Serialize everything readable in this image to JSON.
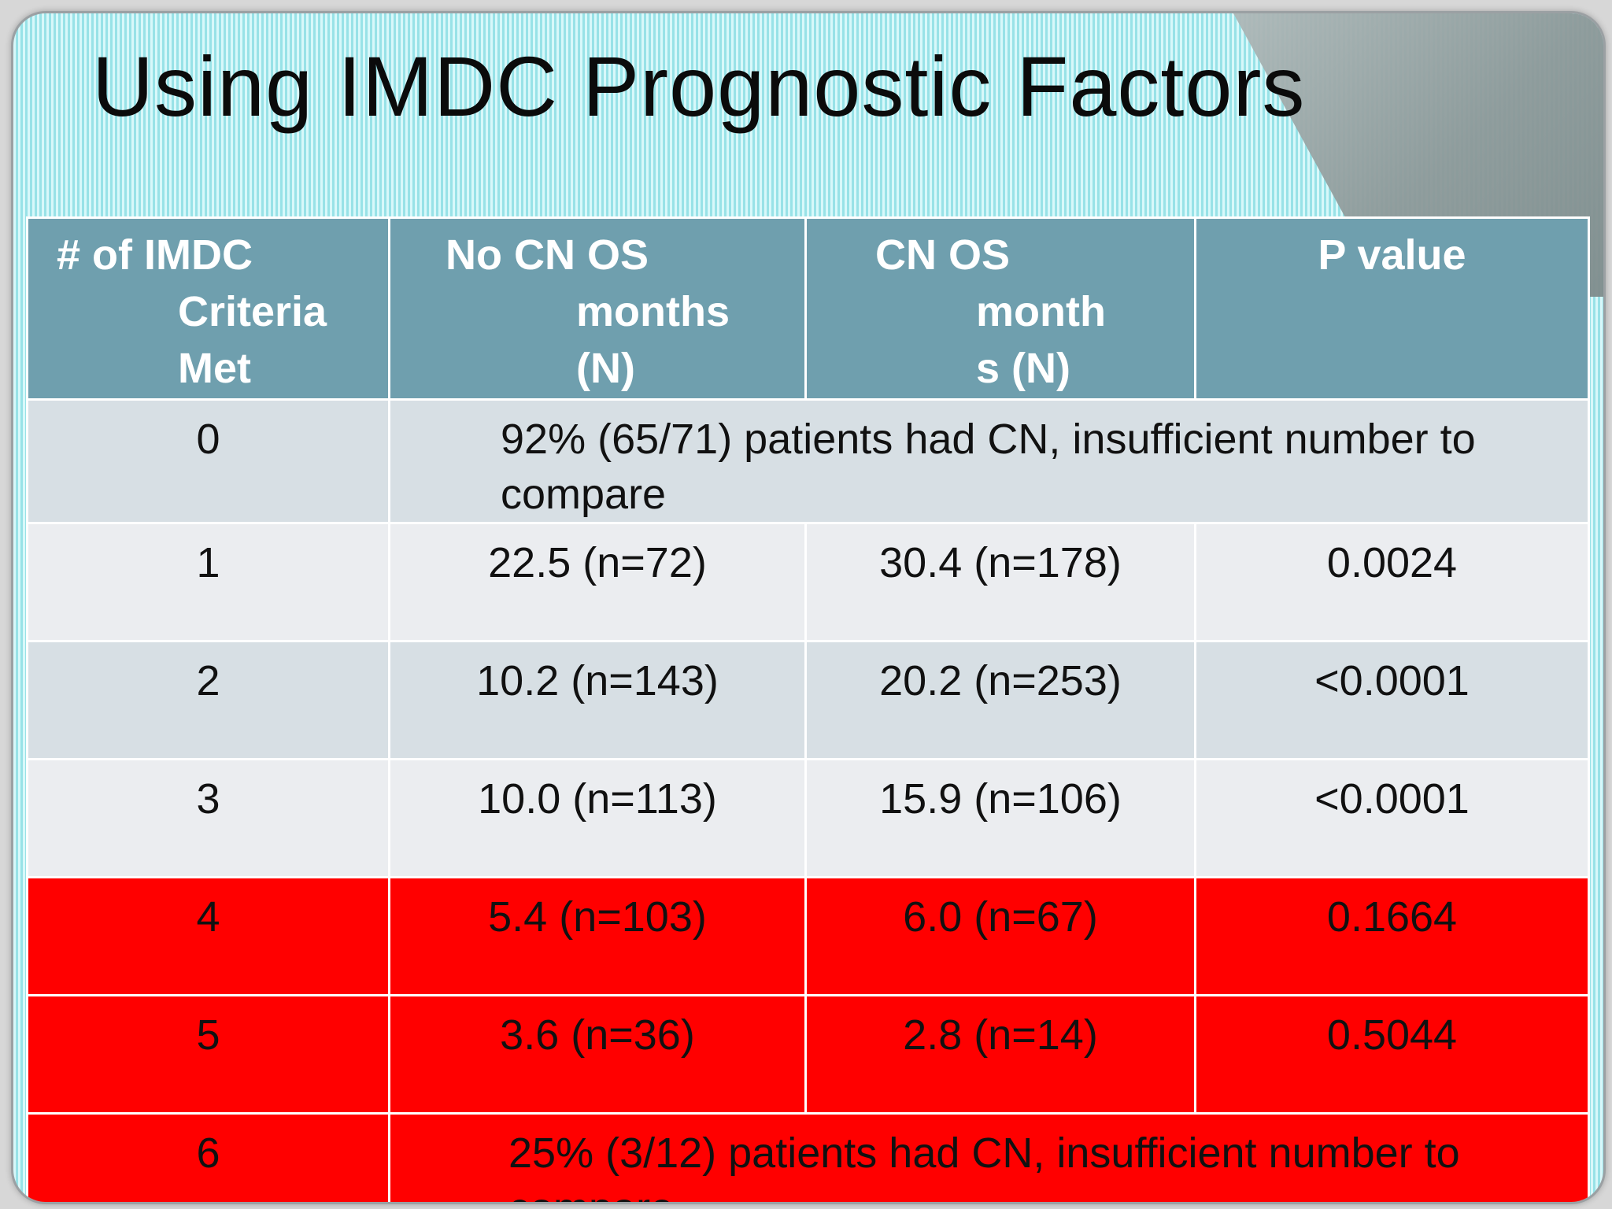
{
  "slide": {
    "title": "Using IMDC Prognostic Factors"
  },
  "table": {
    "headers": [
      {
        "lines": [
          "# of IMDC",
          "Criteria",
          "Met"
        ]
      },
      {
        "lines": [
          "No CN OS",
          "months",
          "(N)"
        ]
      },
      {
        "lines": [
          "CN OS",
          "month",
          "s  (N)"
        ]
      },
      {
        "lines": [
          "P value"
        ]
      }
    ],
    "rows": [
      {
        "criteria": "0",
        "span_lines": [
          "92% (65/71) patients had CN, insufficient number to",
          "compare"
        ]
      },
      {
        "criteria": "1",
        "no_cn": "22.5 (n=72)",
        "cn": "30.4 (n=178)",
        "p": "0.0024"
      },
      {
        "criteria": "2",
        "no_cn": "10.2 (n=143)",
        "cn": "20.2 (n=253)",
        "p": "<0.0001"
      },
      {
        "criteria": "3",
        "no_cn": "10.0 (n=113)",
        "cn": "15.9 (n=106)",
        "p": "<0.0001"
      },
      {
        "criteria": "4",
        "no_cn": "5.4 (n=103)",
        "cn": "6.0 (n=67)",
        "p": "0.1664"
      },
      {
        "criteria": "5",
        "no_cn": "3.6 (n=36)",
        "cn": "2.8 (n=14)",
        "p": "0.5044"
      },
      {
        "criteria": "6",
        "span_lines": [
          "25% (3/12) patients had CN, insufficient number to",
          "compare"
        ]
      }
    ]
  },
  "colors": {
    "header_bg": "#6f9fae",
    "row_shaded": "#d7dfe4",
    "row_light": "#ebedf0",
    "row_highlight": "#ff0000",
    "slide_bg": "#a9f0f5"
  }
}
